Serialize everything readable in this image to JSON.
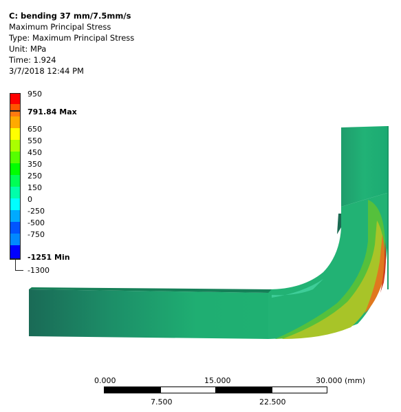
{
  "info": {
    "title": "C: bending 37 mm/7.5mm/s",
    "result": "Maximum Principal Stress",
    "type": "Type: Maximum Principal Stress",
    "unit": "Unit: MPa",
    "time": "Time: 1.924",
    "date": "3/7/2018 12:44 PM"
  },
  "legend": {
    "labels": [
      "950",
      "791.84 Max",
      "650",
      "550",
      "450",
      "350",
      "250",
      "150",
      "0",
      "-250",
      "-500",
      "-750",
      "-1251 Min",
      "-1300"
    ],
    "colors": [
      "#ff0000",
      "#ff5500",
      "#ffaa00",
      "#ffff00",
      "#aaff00",
      "#55ff00",
      "#00ff00",
      "#00ff55",
      "#00ffaa",
      "#00ffff",
      "#00aaff",
      "#0055ff",
      "#0000ff"
    ]
  },
  "scale": {
    "labels_top": [
      "0.000",
      "15.000",
      "30.000 (mm)"
    ],
    "labels_bottom": [
      "7.500",
      "22.500"
    ]
  },
  "model_colors": {
    "body": "#1fb072",
    "dark": "#1b7058",
    "edge": "#178e60",
    "orange": "#e98a1a",
    "yellow": "#c8c82a"
  }
}
